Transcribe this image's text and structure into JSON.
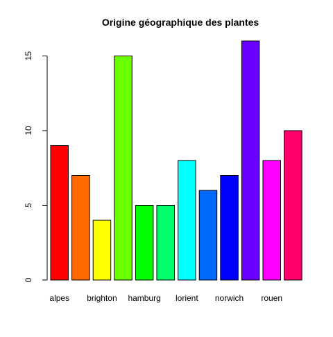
{
  "chart_data": {
    "type": "bar",
    "title": "Origine géographique des plantes",
    "xlabel": "",
    "ylabel": "",
    "categories": [
      "alpes",
      "",
      "brighton",
      "",
      "hamburg",
      "",
      "lorient",
      "",
      "norwich",
      "",
      "rouen",
      ""
    ],
    "values": [
      9,
      7,
      4,
      15,
      5,
      5,
      8,
      6,
      7,
      16,
      8,
      10
    ],
    "colors": [
      "#FF0000",
      "#FF6A00",
      "#FFFF00",
      "#6AFF00",
      "#00FF00",
      "#00FF6A",
      "#00FFFF",
      "#006AFF",
      "#0000FF",
      "#6A00FF",
      "#FF00FF",
      "#FF006A"
    ],
    "ylim": [
      0,
      16.8
    ],
    "yticks": [
      0,
      5,
      10,
      15
    ],
    "grid": false,
    "legend": "none"
  }
}
